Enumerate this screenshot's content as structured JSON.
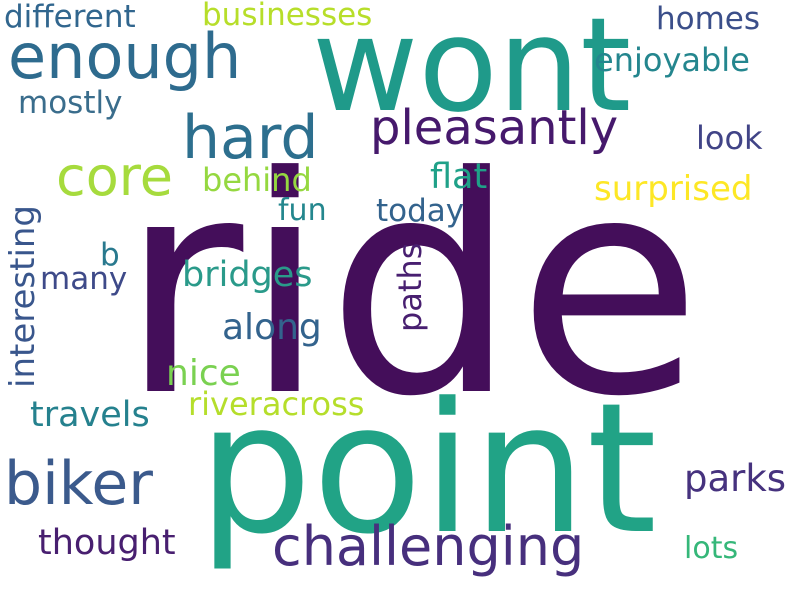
{
  "words": [
    {
      "text": "ride",
      "color": "#440e5a",
      "rotation": 0
    },
    {
      "text": "point",
      "color": "#21a386",
      "rotation": 0
    },
    {
      "text": "wont",
      "color": "#1f9a8a",
      "rotation": 0
    },
    {
      "text": "enough",
      "color": "#2e6b8e",
      "rotation": 0
    },
    {
      "text": "hard",
      "color": "#2d6f8e",
      "rotation": 0
    },
    {
      "text": "pleasantly",
      "color": "#46196c",
      "rotation": 0
    },
    {
      "text": "core",
      "color": "#a6db3d",
      "rotation": 0
    },
    {
      "text": "biker",
      "color": "#3b5a8c",
      "rotation": 0
    },
    {
      "text": "challenging",
      "color": "#472f7d",
      "rotation": 0
    },
    {
      "text": "different",
      "color": "#31668e",
      "rotation": 0
    },
    {
      "text": "businesses",
      "color": "#b7de2a",
      "rotation": 0
    },
    {
      "text": "homes",
      "color": "#3b4f8a",
      "rotation": 0
    },
    {
      "text": "enjoyable",
      "color": "#24868e",
      "rotation": 0
    },
    {
      "text": "mostly",
      "color": "#3a6d8c",
      "rotation": 0
    },
    {
      "text": "look",
      "color": "#414487",
      "rotation": 0
    },
    {
      "text": "interesting",
      "color": "#39568c",
      "rotation": 90
    },
    {
      "text": "behind",
      "color": "#95d840",
      "rotation": 0
    },
    {
      "text": "flat",
      "color": "#1fa188",
      "rotation": 0
    },
    {
      "text": "surprised",
      "color": "#fde725",
      "rotation": 0
    },
    {
      "text": "fun",
      "color": "#24878e",
      "rotation": 0
    },
    {
      "text": "today",
      "color": "#33638d",
      "rotation": 0
    },
    {
      "text": "b",
      "color": "#29798e",
      "rotation": 0
    },
    {
      "text": "many",
      "color": "#3e4a89",
      "rotation": 0
    },
    {
      "text": "bridges",
      "color": "#2a9a8a",
      "rotation": 0
    },
    {
      "text": "paths",
      "color": "#481f70",
      "rotation": 90
    },
    {
      "text": "along",
      "color": "#33638d",
      "rotation": 0
    },
    {
      "text": "nice",
      "color": "#7ad151",
      "rotation": 0
    },
    {
      "text": "riveracross",
      "color": "#b5de2b",
      "rotation": 0
    },
    {
      "text": "travels",
      "color": "#25818e",
      "rotation": 0
    },
    {
      "text": "parks",
      "color": "#46327e",
      "rotation": 0
    },
    {
      "text": "thought",
      "color": "#481f70",
      "rotation": 0
    },
    {
      "text": "lots",
      "color": "#35b779",
      "rotation": 0
    }
  ]
}
